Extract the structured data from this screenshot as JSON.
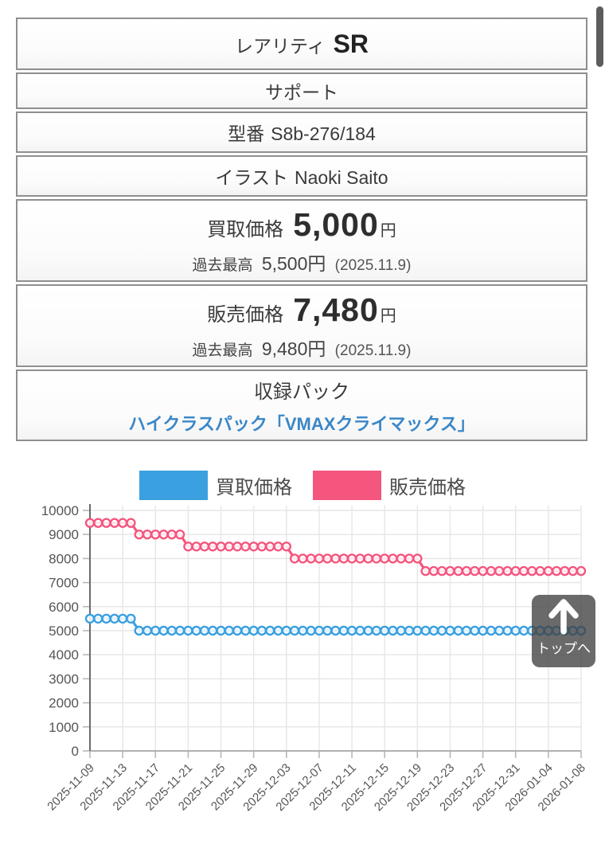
{
  "info": {
    "rarity": {
      "label": "レアリティ",
      "value": "SR"
    },
    "card_type": {
      "value": "サポート"
    },
    "model": {
      "label": "型番",
      "value": "S8b-276/184"
    },
    "illustrator": {
      "label": "イラスト",
      "value": "Naoki Saito"
    },
    "buy": {
      "label": "買取価格",
      "amount": "5,000",
      "unit": "円",
      "past_label": "過去最高",
      "past_amount": "5,500円",
      "past_date": "(2025.11.9)"
    },
    "sell": {
      "label": "販売価格",
      "amount": "7,480",
      "unit": "円",
      "past_label": "過去最高",
      "past_amount": "9,480円",
      "past_date": "(2025.11.9)"
    },
    "pack": {
      "label": "収録パック",
      "link_text": "ハイクラスパック「VMAXクライマックス」"
    }
  },
  "colors": {
    "buy_line": "#3aa0e0",
    "sell_line": "#f4567e",
    "link": "#3a87c8",
    "grid": "#e6e6e6",
    "axis_y": "#6b6b6b",
    "axis_x": "#b0b0b0",
    "tick": "#b8b8b8",
    "axis_text": "#555555"
  },
  "chart_data": {
    "type": "line",
    "title": "",
    "x_start": "2025-11-09",
    "x_end": "2026-01-08",
    "x_tick_interval_days": 4,
    "x_tick_labels": [
      "2025-11-09",
      "2025-11-13",
      "2025-11-17",
      "2025-11-21",
      "2025-11-25",
      "2025-11-29",
      "2025-12-03",
      "2025-12-07",
      "2025-12-11",
      "2025-12-15",
      "2025-12-19",
      "2025-12-23",
      "2025-12-27",
      "2025-12-31",
      "2026-01-04",
      "2026-01-08"
    ],
    "ylim": [
      0,
      10000
    ],
    "y_tick_step": 1000,
    "grid": true,
    "legend_position": "top",
    "point_style": "open-circle",
    "series": [
      {
        "name": "買取価格",
        "color": "#3aa0e0",
        "segments": [
          {
            "from": "2025-11-09",
            "to": "2025-11-14",
            "value": 5500
          },
          {
            "from": "2025-11-15",
            "to": "2026-01-08",
            "value": 5000
          }
        ]
      },
      {
        "name": "販売価格",
        "color": "#f4567e",
        "segments": [
          {
            "from": "2025-11-09",
            "to": "2025-11-14",
            "value": 9480
          },
          {
            "from": "2025-11-15",
            "to": "2025-11-20",
            "value": 9000
          },
          {
            "from": "2025-11-21",
            "to": "2025-12-03",
            "value": 8500
          },
          {
            "from": "2025-12-04",
            "to": "2025-12-19",
            "value": 8000
          },
          {
            "from": "2025-12-20",
            "to": "2026-01-08",
            "value": 7480
          }
        ]
      }
    ]
  },
  "back_to_top": {
    "label": "トップへ"
  }
}
